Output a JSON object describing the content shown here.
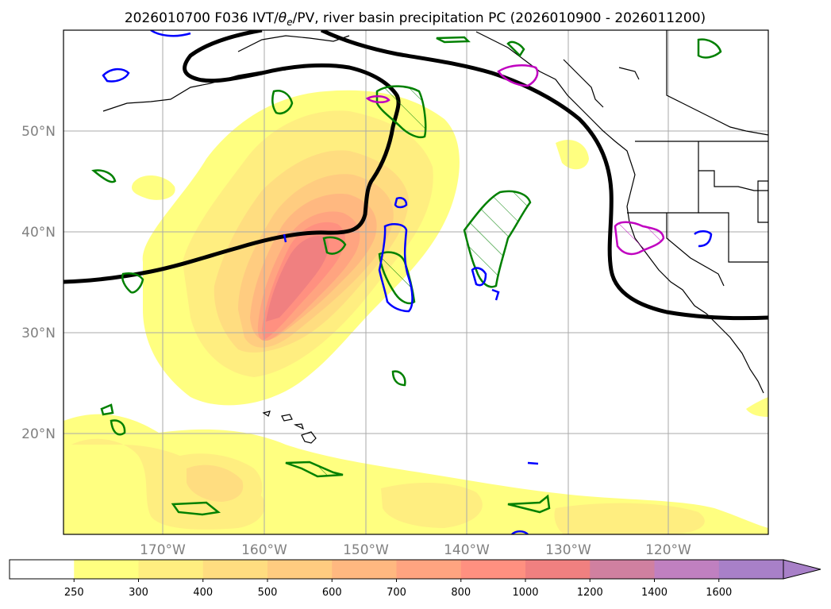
{
  "title_main": "2026010700 F036 IVT/",
  "title_theta": "θ",
  "title_theta_sub": "e",
  "title_rest": "/PV, river basin precipitation PC (2026010900 - 2026011200)",
  "map": {
    "projection": "lat-lon",
    "lon_range": [
      -180,
      -110
    ],
    "lat_range": [
      10,
      60
    ],
    "gridlines": true
  },
  "lat_labels": [
    "50°N",
    "40°N",
    "30°N",
    "20°N"
  ],
  "lon_labels": [
    "170°W",
    "160°W",
    "150°W",
    "140°W",
    "130°W",
    "120°W"
  ],
  "colorbar": {
    "levels": [
      "250",
      "300",
      "400",
      "500",
      "600",
      "700",
      "800",
      "1000",
      "1200",
      "1400",
      "1600"
    ],
    "colors": [
      "#ffffff",
      "#ffff80",
      "#ffee80",
      "#ffdd80",
      "#ffcc80",
      "#ffb880",
      "#ffa480",
      "#ff9080",
      "#f08080",
      "#d080a0",
      "#c080c0",
      "#a880c8"
    ],
    "extend": "max"
  },
  "contour_colors": {
    "pv": "#000000",
    "theta_e_green": "#008000",
    "blue": "#0000ff",
    "magenta": "#c000c0"
  }
}
